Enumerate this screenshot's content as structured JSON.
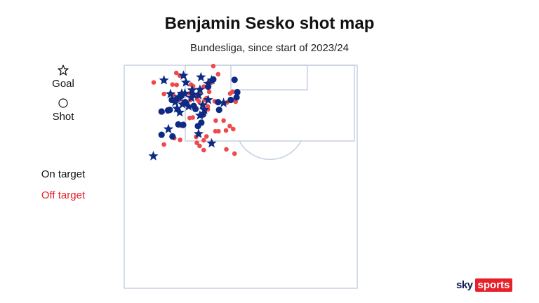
{
  "title": "Benjamin Sesko shot map",
  "subtitle": "Bundesliga, since start of 2023/24",
  "legend": {
    "goal_label": "Goal",
    "shot_label": "Shot",
    "on_target_label": "On target",
    "off_target_label": "Off target"
  },
  "colors": {
    "on_target": "#0d2a84",
    "off_target": "#f0494b",
    "pitch_lines": "#c7d0e3",
    "on_target_text": "#111111",
    "off_target_text": "#e8202a"
  },
  "brand": {
    "sky": "sky",
    "sports": "sports"
  },
  "chart_data": {
    "type": "scatter",
    "x_range": [
      0,
      68
    ],
    "y_range": [
      0,
      52
    ],
    "y_origin": "goal line",
    "series": [
      {
        "name": "Goal",
        "marker": "star",
        "points": [
          [
            11.6,
            3.5
          ],
          [
            17.3,
            2.4
          ],
          [
            18.0,
            4.0
          ],
          [
            20.1,
            6.8
          ],
          [
            22.4,
            2.8
          ],
          [
            25.5,
            3.5
          ],
          [
            13.5,
            6.7
          ],
          [
            15.9,
            7.4
          ],
          [
            16.8,
            6.6
          ],
          [
            17.7,
            6.6
          ],
          [
            19.6,
            7.6
          ],
          [
            19.8,
            5.8
          ],
          [
            21.7,
            7.0
          ],
          [
            22.1,
            5.7
          ],
          [
            24.5,
            4.3
          ],
          [
            14.9,
            8.6
          ],
          [
            17.0,
            9.1
          ],
          [
            18.8,
            9.6
          ],
          [
            22.9,
            9.3
          ],
          [
            23.4,
            10.4
          ],
          [
            24.5,
            8.1
          ],
          [
            29.0,
            8.8
          ],
          [
            15.4,
            10.1
          ],
          [
            16.2,
            11.0
          ],
          [
            22.1,
            11.7
          ],
          [
            12.9,
            14.9
          ],
          [
            21.7,
            16.0
          ],
          [
            25.5,
            18.2
          ],
          [
            8.5,
            21.2
          ]
        ]
      },
      {
        "name": "Shot on target",
        "marker": "circle",
        "points": [
          [
            24.5,
            5.0
          ],
          [
            26.0,
            3.3
          ],
          [
            32.2,
            3.4
          ],
          [
            33.0,
            6.3
          ],
          [
            32.8,
            7.5
          ],
          [
            16.6,
            7.2
          ],
          [
            17.8,
            8.6
          ],
          [
            20.3,
            9.5
          ],
          [
            20.8,
            10.2
          ],
          [
            15.2,
            8.0
          ],
          [
            13.9,
            8.1
          ],
          [
            12.8,
            10.5
          ],
          [
            10.9,
            10.8
          ],
          [
            13.3,
            10.4
          ],
          [
            31.1,
            8.1
          ],
          [
            27.7,
            10.4
          ],
          [
            23.0,
            11.5
          ],
          [
            22.5,
            13.4
          ],
          [
            15.8,
            13.8
          ],
          [
            17.2,
            13.9
          ],
          [
            10.9,
            16.2
          ],
          [
            14.1,
            16.6
          ],
          [
            21.5,
            14.2
          ],
          [
            27.4,
            8.6
          ]
        ]
      },
      {
        "name": "Shot off target",
        "marker": "circle",
        "points": [
          [
            15.2,
            1.8
          ],
          [
            16.2,
            2.4
          ],
          [
            26.0,
            0.2
          ],
          [
            27.4,
            2.1
          ],
          [
            24.4,
            4.2
          ],
          [
            25.3,
            4.1
          ],
          [
            23.2,
            5.0
          ],
          [
            8.6,
            4.0
          ],
          [
            14.1,
            4.5
          ],
          [
            15.3,
            4.6
          ],
          [
            19.5,
            4.5
          ],
          [
            20.1,
            4.9
          ],
          [
            24.8,
            6.2
          ],
          [
            11.6,
            6.7
          ],
          [
            14.3,
            6.9
          ],
          [
            19.0,
            6.6
          ],
          [
            21.2,
            6.9
          ],
          [
            31.6,
            6.2
          ],
          [
            15.1,
            8.3
          ],
          [
            16.2,
            8.0
          ],
          [
            19.3,
            8.1
          ],
          [
            21.3,
            7.9
          ],
          [
            22.0,
            6.7
          ],
          [
            21.8,
            8.4
          ],
          [
            23.5,
            8.1
          ],
          [
            24.0,
            7.7
          ],
          [
            24.4,
            9.6
          ],
          [
            26.4,
            8.4
          ],
          [
            30.9,
            6.6
          ],
          [
            30.0,
            8.7
          ],
          [
            32.5,
            8.5
          ],
          [
            23.1,
            9.9
          ],
          [
            24.4,
            10.3
          ],
          [
            11.2,
            10.9
          ],
          [
            12.7,
            10.8
          ],
          [
            19.1,
            12.3
          ],
          [
            20.0,
            12.2
          ],
          [
            26.7,
            12.9
          ],
          [
            29.0,
            12.9
          ],
          [
            30.8,
            14.2
          ],
          [
            31.8,
            14.9
          ],
          [
            16.6,
            14.1
          ],
          [
            26.6,
            15.4
          ],
          [
            27.5,
            15.4
          ],
          [
            29.7,
            15.2
          ],
          [
            14.6,
            17.0
          ],
          [
            16.3,
            17.4
          ],
          [
            11.6,
            18.5
          ],
          [
            22.0,
            18.8
          ],
          [
            21.2,
            18.1
          ],
          [
            23.2,
            17.5
          ],
          [
            23.2,
            19.8
          ],
          [
            29.8,
            19.6
          ],
          [
            32.2,
            20.6
          ],
          [
            24.0,
            16.6
          ],
          [
            21.0,
            16.7
          ]
        ]
      }
    ]
  }
}
